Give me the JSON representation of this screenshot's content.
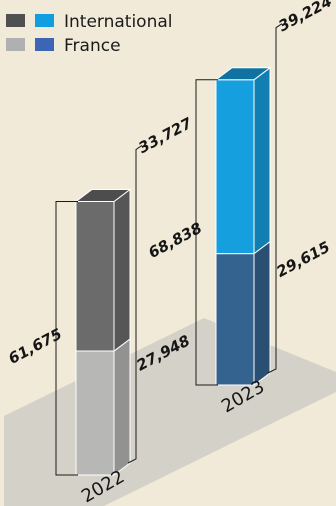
{
  "colors": {
    "background": "#f1ead8",
    "floor": "#d4d2c8",
    "bar_2022_international": "#6b6b6b",
    "bar_2022_france": "#b7b7b5",
    "bar_2023_international": "#169fdf",
    "bar_2023_france": "#35638f",
    "legend_gray_dark": "#505050",
    "legend_gray_light": "#b0b0b0",
    "legend_blue_light": "#0f9ee0",
    "legend_blue_dark": "#3c66b4"
  },
  "legend": [
    {
      "name": "International",
      "swatches": [
        "legend_gray_dark",
        "legend_blue_light"
      ]
    },
    {
      "name": "France",
      "swatches": [
        "legend_gray_light",
        "legend_blue_dark"
      ]
    }
  ],
  "chart_data": {
    "type": "bar",
    "stacked": true,
    "style": "3d-isometric",
    "categories": [
      "2022",
      "2023"
    ],
    "series": [
      {
        "name": "France",
        "values": [
          27948,
          29615
        ]
      },
      {
        "name": "International",
        "values": [
          33727,
          39224
        ]
      }
    ],
    "totals": [
      61675,
      68838
    ],
    "labels": {
      "totals": [
        "61,675",
        "68,838"
      ],
      "france": [
        "27,948",
        "29,615"
      ],
      "international": [
        "33,727",
        "39,224"
      ]
    },
    "category_labels": [
      "2022",
      "2023"
    ]
  }
}
